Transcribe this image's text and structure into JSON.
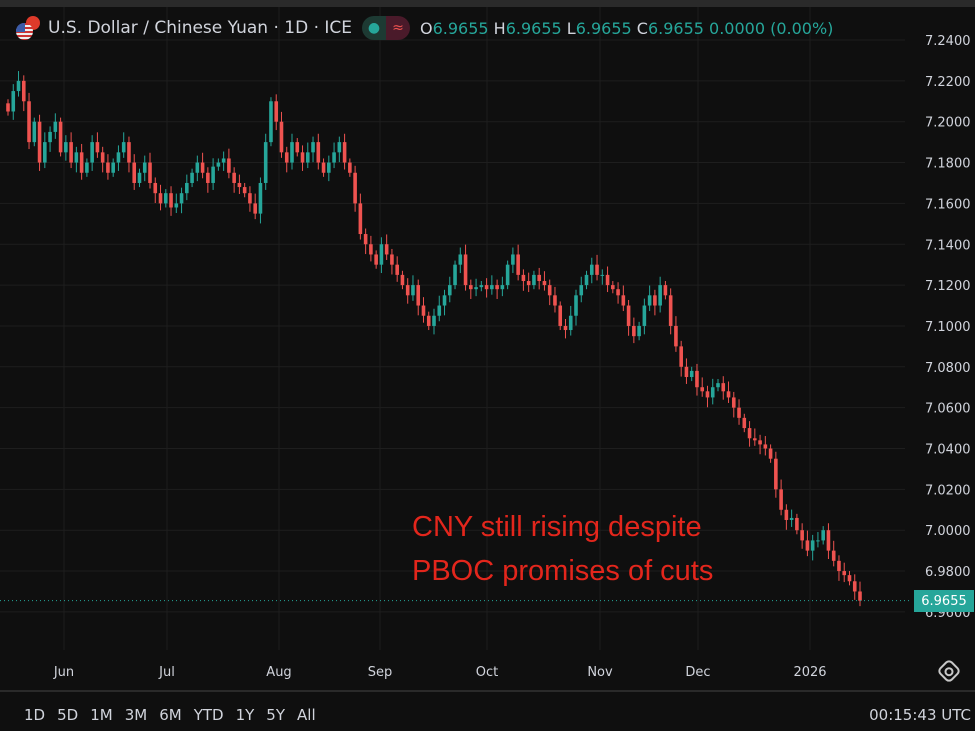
{
  "header": {
    "title": "U.S. Dollar / Chinese Yuan · 1D · ICE",
    "o_label": "O",
    "o": "6.9655",
    "h_label": "H",
    "h": "6.9655",
    "l_label": "L",
    "l": "6.9655",
    "c_label": "C",
    "c": "6.9655",
    "change": "0.0000 (0.00%)",
    "pill_left": "●",
    "pill_right": "≈"
  },
  "annotation": {
    "line1": "CNY still rising despite",
    "line2": "PBOC promises of cuts"
  },
  "price_tag": "6.9655",
  "toolbar": {
    "ranges": [
      "1D",
      "5D",
      "1M",
      "3M",
      "6M",
      "YTD",
      "1Y",
      "5Y",
      "All"
    ],
    "clock": "00:15:43 UTC"
  },
  "colors": {
    "up": "#26a69a",
    "down": "#ef5350",
    "annotation": "#e3261c",
    "background": "#0f0f0f"
  },
  "chart_data": {
    "type": "candlestick",
    "title": "U.S. Dollar / Chinese Yuan · 1D · ICE",
    "ylim": [
      6.955,
      7.25
    ],
    "y_ticks": [
      "7.2400",
      "7.2200",
      "7.2000",
      "7.1800",
      "7.1600",
      "7.1400",
      "7.1200",
      "7.1000",
      "7.0800",
      "7.0600",
      "7.0400",
      "7.0200",
      "7.0000",
      "6.9800",
      "6.9600"
    ],
    "x_ticks": [
      "Jun",
      "Jul",
      "Aug",
      "Sep",
      "Oct",
      "Nov",
      "Dec",
      "2026"
    ],
    "grid": true,
    "last_price": 6.9655,
    "closes": [
      7.205,
      7.215,
      7.22,
      7.21,
      7.19,
      7.2,
      7.18,
      7.19,
      7.195,
      7.2,
      7.185,
      7.19,
      7.18,
      7.185,
      7.175,
      7.18,
      7.19,
      7.185,
      7.18,
      7.175,
      7.18,
      7.185,
      7.19,
      7.18,
      7.17,
      7.175,
      7.18,
      7.17,
      7.165,
      7.16,
      7.165,
      7.158,
      7.16,
      7.165,
      7.17,
      7.175,
      7.18,
      7.175,
      7.17,
      7.178,
      7.18,
      7.182,
      7.175,
      7.17,
      7.168,
      7.165,
      7.16,
      7.155,
      7.17,
      7.19,
      7.21,
      7.2,
      7.185,
      7.18,
      7.19,
      7.185,
      7.18,
      7.185,
      7.19,
      7.18,
      7.175,
      7.18,
      7.185,
      7.19,
      7.18,
      7.175,
      7.16,
      7.145,
      7.14,
      7.135,
      7.13,
      7.14,
      7.135,
      7.13,
      7.125,
      7.12,
      7.115,
      7.12,
      7.11,
      7.105,
      7.1,
      7.105,
      7.11,
      7.115,
      7.12,
      7.13,
      7.135,
      7.12,
      7.118,
      7.119,
      7.12,
      7.118,
      7.12,
      7.118,
      7.12,
      7.13,
      7.135,
      7.125,
      7.122,
      7.12,
      7.125,
      7.122,
      7.12,
      7.115,
      7.11,
      7.1,
      7.098,
      7.105,
      7.115,
      7.12,
      7.125,
      7.13,
      7.125,
      7.125,
      7.12,
      7.118,
      7.115,
      7.11,
      7.1,
      7.095,
      7.1,
      7.11,
      7.115,
      7.11,
      7.12,
      7.115,
      7.1,
      7.09,
      7.08,
      7.075,
      7.078,
      7.07,
      7.068,
      7.065,
      7.07,
      7.072,
      7.068,
      7.065,
      7.06,
      7.055,
      7.05,
      7.045,
      7.044,
      7.042,
      7.04,
      7.035,
      7.02,
      7.01,
      7.005,
      7.006,
      7.0,
      6.995,
      6.99,
      6.995,
      6.995,
      7.0,
      6.99,
      6.985,
      6.98,
      6.978,
      6.975,
      6.97,
      6.9655
    ]
  }
}
